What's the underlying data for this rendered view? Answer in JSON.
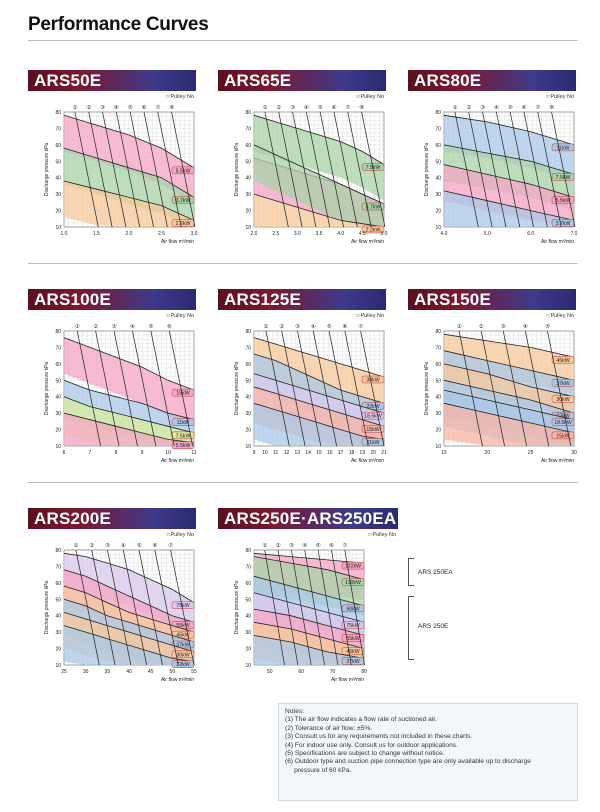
{
  "page_title": "Performance Curves",
  "pulley_label": "○:Pulley No",
  "ylabel": "Discharge pressure kPa",
  "xlabel": "Air flow  m³/min",
  "ars_labels": [
    "ARS 250EA",
    "ARS 250E"
  ],
  "notes": {
    "heading": "Notes:",
    "items": [
      "(1) The air flow indicates a flow rate of suctioned air.",
      "(2) Tolerance of air flow: ±5%.",
      "(3) Consult us for any requirements not included in these charts.",
      "(4) For indoor use only. Consult us for outdoor applications.",
      "(5) Specifications are subject to change without notice.",
      "(6) Outdoor type and suction pipe connection type are only available up to discharge\n     pressure of 60 kPa."
    ]
  },
  "chart_data": [
    {
      "type": "area",
      "title": "ARS50E",
      "xlim": [
        1.0,
        3.0
      ],
      "xticks": [
        "1.0",
        "1.5",
        "2.0",
        "2.5",
        "3.0"
      ],
      "ylim": [
        10,
        80
      ],
      "yticks": [
        "10",
        "20",
        "30",
        "40",
        "50",
        "60",
        "70",
        "80"
      ],
      "pulleys": [
        "①",
        "②",
        "③",
        "④",
        "⑤",
        "⑥",
        "⑦",
        "⑧"
      ],
      "series": [
        {
          "name": "5.5kW",
          "color": "#f4a6c4",
          "y": [
            78,
            72,
            66,
            58,
            46
          ]
        },
        {
          "name": "3.7kW",
          "color": "#a8d3a8",
          "y": [
            58,
            52,
            46,
            40,
            28
          ]
        },
        {
          "name": "2.2kW",
          "color": "#f7c89b",
          "y": [
            38,
            33,
            28,
            23,
            14
          ]
        }
      ]
    },
    {
      "type": "area",
      "title": "ARS65E",
      "xlim": [
        2.0,
        5.0
      ],
      "xticks": [
        "2.0",
        "2.5",
        "3.0",
        "3.5",
        "4.0",
        "4.5",
        "5.0"
      ],
      "ylim": [
        10,
        80
      ],
      "yticks": [
        "10",
        "20",
        "30",
        "40",
        "50",
        "60",
        "70",
        "80"
      ],
      "pulleys": [
        "①",
        "②",
        "③",
        "④",
        "⑤",
        "⑥",
        "⑦",
        "⑧"
      ],
      "series": [
        {
          "name": "7.5kW",
          "color": "#a8d3a8",
          "y": [
            78,
            74,
            70,
            66,
            62,
            56,
            48
          ]
        },
        {
          "name": "5.5kW",
          "color": "#f4a6c4",
          "y": [
            52,
            48,
            44,
            40,
            36,
            30,
            24
          ]
        },
        {
          "name": "3.7kW",
          "color": "#a8d3a8",
          "y": [
            60,
            54,
            48,
            42,
            36,
            30,
            24
          ]
        },
        {
          "name": "2.2kW",
          "color": "#f7c89b",
          "y": [
            30,
            26,
            22,
            18,
            14,
            12,
            10
          ]
        }
      ]
    },
    {
      "type": "area",
      "title": "ARS80E",
      "xlim": [
        4.0,
        7.0
      ],
      "xticks": [
        "4.0",
        "5.0",
        "6.0",
        "7.0"
      ],
      "ylim": [
        10,
        80
      ],
      "yticks": [
        "10",
        "20",
        "30",
        "40",
        "50",
        "60",
        "70",
        "80"
      ],
      "pulleys": [
        "①",
        "②",
        "③",
        "④",
        "⑤",
        "⑥",
        "⑦",
        "⑧"
      ],
      "series": [
        {
          "name": "11kW",
          "color": "#a9c8e8",
          "y": [
            78,
            74,
            68,
            60
          ]
        },
        {
          "name": "7.5kW",
          "color": "#a8d3a8",
          "y": [
            60,
            55,
            50,
            42
          ]
        },
        {
          "name": "5.5kW",
          "color": "#f4a6c4",
          "y": [
            48,
            42,
            36,
            28
          ]
        },
        {
          "name": "3.7kW",
          "color": "#a9c8e8",
          "y": [
            32,
            26,
            20,
            14
          ]
        }
      ]
    },
    {
      "type": "area",
      "title": "ARS100E",
      "xlim": [
        6,
        11
      ],
      "xticks": [
        "6",
        "7",
        "8",
        "9",
        "10",
        "11"
      ],
      "ylim": [
        10,
        80
      ],
      "yticks": [
        "10",
        "20",
        "30",
        "40",
        "50",
        "60",
        "70",
        "80"
      ],
      "pulleys": [
        "①",
        "②",
        "③",
        "④",
        "⑤",
        "⑥"
      ],
      "series": [
        {
          "name": "15kW",
          "color": "#f4a6c4",
          "y": [
            76,
            70,
            64,
            58,
            50,
            44
          ]
        },
        {
          "name": "11kW",
          "color": "#a9c8e8",
          "y": [
            50,
            44,
            40,
            36,
            30,
            26
          ]
        },
        {
          "name": "7.5kW",
          "color": "#d9ec9c",
          "y": [
            40,
            34,
            30,
            26,
            22,
            18
          ]
        },
        {
          "name": "5.5kW",
          "color": "#f4a6c4",
          "y": [
            30,
            26,
            22,
            18,
            14,
            12
          ]
        }
      ]
    },
    {
      "type": "area",
      "title": "ARS125E",
      "xlim": [
        9,
        21
      ],
      "xticks": [
        "9",
        "10",
        "11",
        "12",
        "13",
        "14",
        "15",
        "16",
        "17",
        "18",
        "19",
        "20",
        "21"
      ],
      "ylim": [
        10,
        80
      ],
      "yticks": [
        "10",
        "20",
        "30",
        "40",
        "50",
        "60",
        "70",
        "80"
      ],
      "pulleys": [
        "①",
        "②",
        "③",
        "④",
        "⑤",
        "⑥",
        "⑦"
      ],
      "series": [
        {
          "name": "30kW",
          "color": "#f7c89b",
          "y": [
            76,
            72,
            68,
            64,
            60,
            56,
            52
          ]
        },
        {
          "name": "22kW",
          "color": "#a9c8e8",
          "y": [
            66,
            62,
            56,
            50,
            44,
            40,
            36
          ]
        },
        {
          "name": "18.5kW",
          "color": "#d9c8ec",
          "y": [
            54,
            50,
            46,
            42,
            38,
            34,
            30
          ]
        },
        {
          "name": "15kW",
          "color": "#f7b4a6",
          "y": [
            46,
            42,
            38,
            34,
            30,
            26,
            22
          ]
        },
        {
          "name": "11kW",
          "color": "#a9c8e8",
          "y": [
            36,
            32,
            28,
            24,
            20,
            16,
            14
          ]
        }
      ]
    },
    {
      "type": "area",
      "title": "ARS150E",
      "xlim": [
        15,
        30
      ],
      "xticks": [
        "15",
        "20",
        "25",
        "30"
      ],
      "ylim": [
        10,
        80
      ],
      "yticks": [
        "10",
        "20",
        "30",
        "40",
        "50",
        "60",
        "70",
        "80"
      ],
      "pulleys": [
        "①",
        "②",
        "③",
        "④",
        "⑤"
      ],
      "series": [
        {
          "name": "45kW",
          "color": "#f7c89b",
          "y": [
            78,
            74,
            70,
            64
          ]
        },
        {
          "name": "37kW",
          "color": "#a9c8e8",
          "y": [
            68,
            62,
            56,
            50
          ]
        },
        {
          "name": "30kW",
          "color": "#f7c89b",
          "y": [
            60,
            54,
            46,
            40
          ]
        },
        {
          "name": "22kW",
          "color": "#a9c8e8",
          "y": [
            50,
            44,
            38,
            30
          ]
        },
        {
          "name": "18.5kW",
          "color": "#a9c8e8",
          "y": [
            44,
            38,
            32,
            26
          ]
        },
        {
          "name": "15kW",
          "color": "#f7b4a6",
          "y": [
            36,
            30,
            24,
            18
          ]
        }
      ]
    },
    {
      "type": "area",
      "title": "ARS200E",
      "xlim": [
        25,
        55
      ],
      "xticks": [
        "25",
        "30",
        "35",
        "40",
        "45",
        "50",
        "55"
      ],
      "ylim": [
        10,
        80
      ],
      "yticks": [
        "10",
        "20",
        "30",
        "40",
        "50",
        "60",
        "70",
        "80"
      ],
      "pulleys": [
        "①",
        "②",
        "③",
        "④",
        "⑤",
        "⑥",
        "⑦"
      ],
      "series": [
        {
          "name": "75kW",
          "color": "#d9c8ec",
          "y": [
            78,
            76,
            72,
            68,
            62,
            56,
            48
          ]
        },
        {
          "name": "55kW",
          "color": "#f4a6c4",
          "y": [
            68,
            64,
            58,
            52,
            46,
            40,
            36
          ]
        },
        {
          "name": "45kW",
          "color": "#f7c89b",
          "y": [
            58,
            54,
            48,
            42,
            38,
            34,
            30
          ]
        },
        {
          "name": "37kW",
          "color": "#a9c8e8",
          "y": [
            50,
            46,
            40,
            36,
            32,
            28,
            24
          ]
        },
        {
          "name": "30kW",
          "color": "#f7c89b",
          "y": [
            42,
            38,
            34,
            30,
            26,
            22,
            18
          ]
        },
        {
          "name": "22kW",
          "color": "#a9c8e8",
          "y": [
            34,
            30,
            26,
            22,
            18,
            14,
            12
          ]
        }
      ]
    },
    {
      "type": "area",
      "title": "ARS250E·ARS250EA",
      "xlim": [
        45,
        80
      ],
      "xticks": [
        "50",
        "60",
        "70",
        "80"
      ],
      "ylim": [
        10,
        80
      ],
      "yticks": [
        "10",
        "20",
        "30",
        "40",
        "50",
        "60",
        "70",
        "80"
      ],
      "pulleys": [
        "①",
        "②",
        "③",
        "④",
        "⑤",
        "⑥",
        "⑦"
      ],
      "series": [
        {
          "name": "132kW",
          "color": "#f4a6c4",
          "y": [
            78,
            76,
            74,
            72
          ]
        },
        {
          "name": "110kW",
          "color": "#a8d3a8",
          "y": [
            76,
            72,
            68,
            62
          ]
        },
        {
          "name": "90kW",
          "color": "#a9c8e8",
          "y": [
            64,
            58,
            52,
            46
          ]
        },
        {
          "name": "75kW",
          "color": "#d9c8ec",
          "y": [
            54,
            48,
            42,
            36
          ]
        },
        {
          "name": "55kW",
          "color": "#f4a6c4",
          "y": [
            44,
            40,
            34,
            28
          ]
        },
        {
          "name": "45kW",
          "color": "#f7c89b",
          "y": [
            36,
            32,
            26,
            20
          ]
        },
        {
          "name": "37kW",
          "color": "#a9c8e8",
          "y": [
            28,
            24,
            18,
            14
          ]
        }
      ]
    }
  ]
}
